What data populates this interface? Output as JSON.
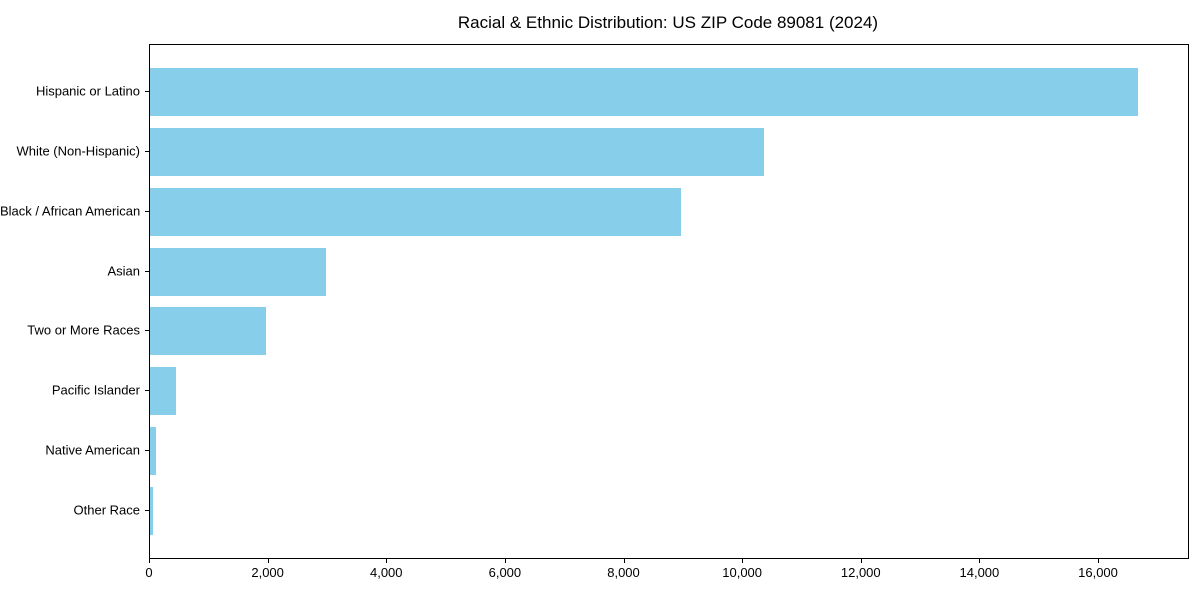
{
  "figure": {
    "background": "#ffffff",
    "spine_color": "#000000",
    "text_color": "#000000"
  },
  "chart_data": {
    "type": "bar",
    "orientation": "horizontal",
    "title": "Racial & Ethnic Distribution: US ZIP Code 89081 (2024)",
    "categories": [
      "Hispanic or Latino",
      "White (Non-Hispanic)",
      "Black / African American",
      "Asian",
      "Two or More Races",
      "Pacific Islander",
      "Native American",
      "Other Race"
    ],
    "values": [
      16650,
      10350,
      8950,
      2970,
      1950,
      440,
      105,
      50
    ],
    "bar_color": "#87CEEB",
    "xlabel": "",
    "ylabel": "",
    "xlim": [
      0,
      17500
    ],
    "xticks": [
      0,
      2000,
      4000,
      6000,
      8000,
      10000,
      12000,
      14000,
      16000
    ],
    "xtick_labels": [
      "0",
      "2,000",
      "4,000",
      "6,000",
      "8,000",
      "10,000",
      "12,000",
      "14,000",
      "16,000"
    ],
    "grid": false,
    "legend": null
  }
}
